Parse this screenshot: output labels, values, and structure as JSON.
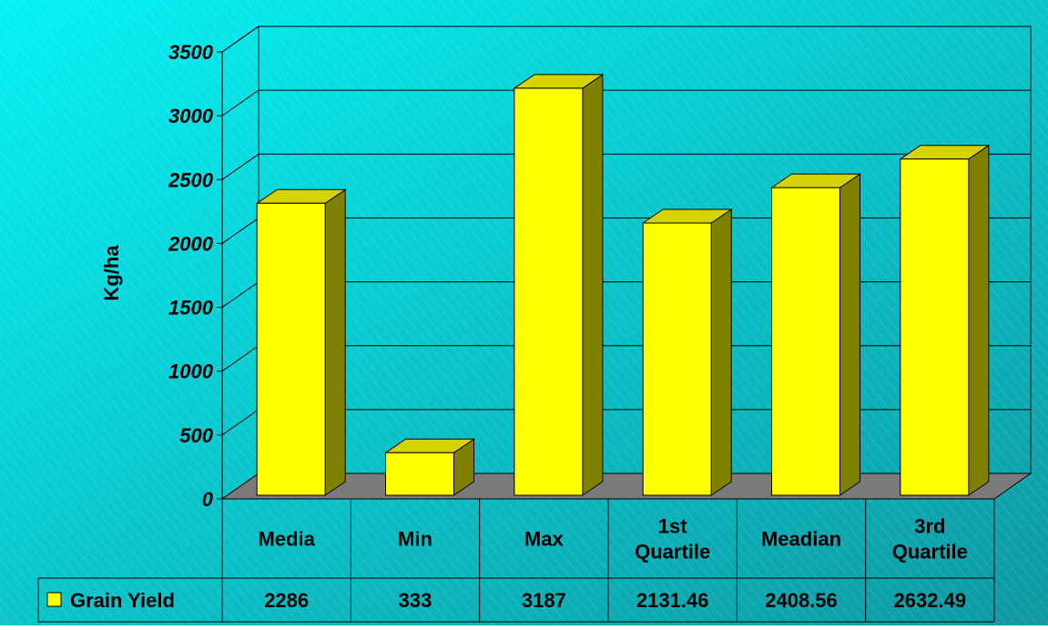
{
  "chart_data": {
    "type": "bar",
    "categories": [
      [
        "Media"
      ],
      [
        "Min"
      ],
      [
        "Max"
      ],
      [
        "1st",
        "Quartile"
      ],
      [
        "Meadian"
      ],
      [
        "3rd",
        "Quartile"
      ]
    ],
    "series": [
      {
        "name": "Grain Yield",
        "values": [
          2286,
          333,
          3187,
          2131.46,
          2408.56,
          2632.49
        ],
        "color": "#FFFF00"
      }
    ],
    "table_values": [
      "2286",
      "333",
      "3187",
      "2131.46",
      "2408.56",
      "2632.49"
    ],
    "ylabel": "Kg/ha",
    "ylim": [
      0,
      3500
    ],
    "yticks": [
      "0",
      "500",
      "1000",
      "1500",
      "2000",
      "2500",
      "3000",
      "3500"
    ],
    "grid": true,
    "style": "3d",
    "legend": "data table",
    "colors": {
      "background": "#14BFCB",
      "bar_front": "#FFFF00",
      "bar_top": "#D6D400",
      "bar_side": "#808000",
      "floor": "#7A7A7A"
    }
  }
}
